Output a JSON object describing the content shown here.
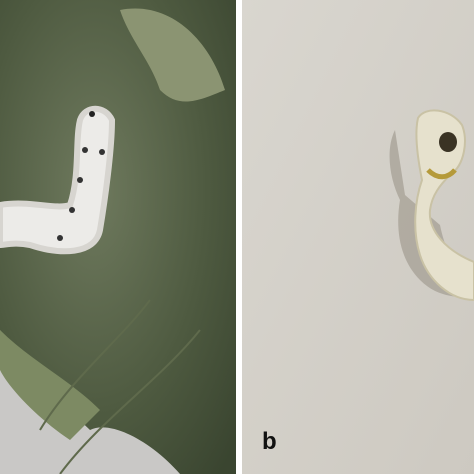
{
  "labels": [
    "b"
  ]
}
